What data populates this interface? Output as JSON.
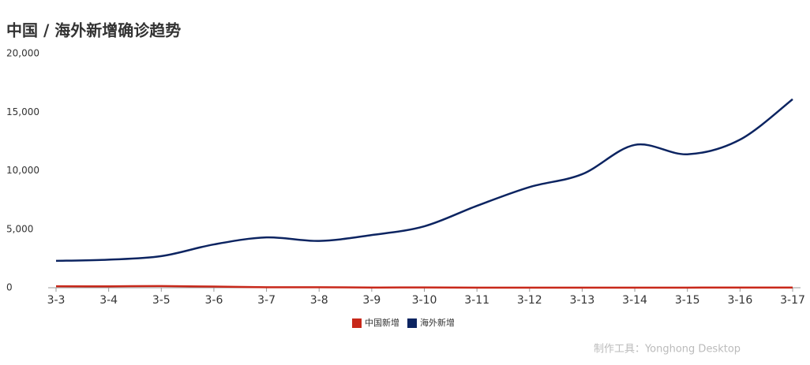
{
  "chart_data": {
    "type": "line",
    "title": "中国 / 海外新增确诊趋势",
    "categories": [
      "3-3",
      "3-4",
      "3-5",
      "3-6",
      "3-7",
      "3-8",
      "3-9",
      "3-10",
      "3-11",
      "3-12",
      "3-13",
      "3-14",
      "3-15",
      "3-16",
      "3-17"
    ],
    "series": [
      {
        "name": "中国新增",
        "color": "#c8281a",
        "values": [
          125,
          120,
          143,
          99,
          44,
          41,
          19,
          24,
          11,
          8,
          11,
          8,
          11,
          21,
          13
        ]
      },
      {
        "name": "海外新增",
        "color": "#0c2461",
        "values": [
          2300,
          2400,
          2700,
          3700,
          4300,
          4000,
          4500,
          5250,
          7000,
          8600,
          9700,
          12200,
          11400,
          12650,
          16100
        ]
      }
    ],
    "ylim": [
      0,
      20000
    ],
    "yticks": [
      0,
      {
        "value": 5000,
        "label": "5,000"
      },
      {
        "value": 10000,
        "label": "10,000"
      },
      {
        "value": 15000,
        "label": "15,000"
      },
      {
        "value": 20000,
        "label": "20,000"
      }
    ],
    "grid": false,
    "legend": "bottom",
    "annotation": "制作工具：Yonghong Desktop"
  }
}
